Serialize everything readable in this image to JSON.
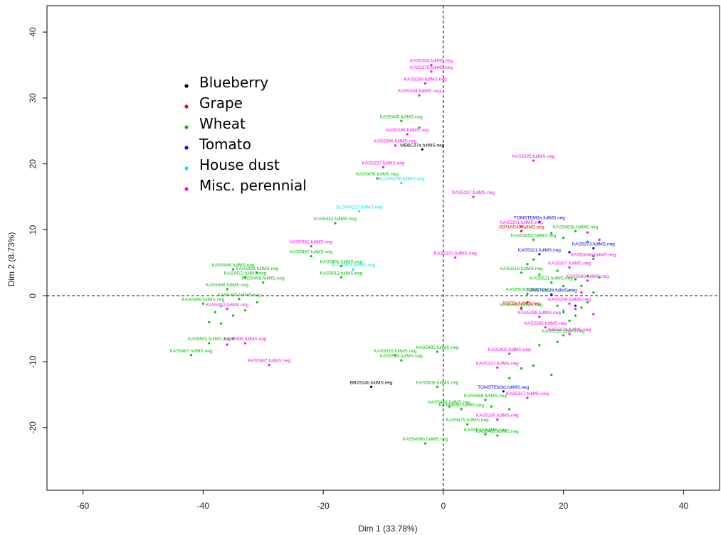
{
  "chart_data": {
    "type": "scatter",
    "title": "",
    "xlabel": "Dim 1 (33.78%)",
    "ylabel": "Dim 2 (8.73%)",
    "xlim": [
      -66,
      46
    ],
    "ylim": [
      -29.5,
      44
    ],
    "xticks": [
      -60,
      -40,
      -20,
      0,
      20,
      40
    ],
    "yticks": [
      -20,
      -10,
      0,
      10,
      20,
      30,
      40
    ],
    "grid": false,
    "reference_lines": {
      "x": 0,
      "y": 0,
      "style": "dashed"
    },
    "legend": {
      "position": "top-left",
      "entries": [
        {
          "name": "Blueberry",
          "color": "#000000"
        },
        {
          "name": "Grape",
          "color": "#ff0000"
        },
        {
          "name": "Wheat",
          "color": "#00c000"
        },
        {
          "name": "Tomato",
          "color": "#0000ff"
        },
        {
          "name": "House dust",
          "color": "#00e5ee"
        },
        {
          "name": "Misc. perennial",
          "color": "#ff00ff"
        }
      ]
    },
    "series": [
      {
        "name": "Blueberry",
        "color": "#000000",
        "points": [
          {
            "x": -3.5,
            "y": 22.2,
            "label": "MBBC37a.fullMS.neg"
          },
          {
            "x": -12,
            "y": -13.8,
            "label": "BBJS14b.fullMS.neg"
          }
        ]
      },
      {
        "name": "Grape",
        "color": "#ff0000",
        "points": [
          {
            "x": 13,
            "y": 9.8,
            "label": "JSP4AR45.fullMS.neg"
          },
          {
            "x": 13,
            "y": -1.8,
            "label": "RSF5b.fullMS.neg"
          },
          {
            "x": 14,
            "y": -1.0,
            "label": ""
          }
        ]
      },
      {
        "name": "Tomato",
        "color": "#0000ff",
        "points": [
          {
            "x": 16,
            "y": 11.2,
            "label": "TOMSTEM3a.fullMS.neg"
          },
          {
            "x": 16,
            "y": 6.3,
            "label": "KAS5321.fullMS.neg"
          },
          {
            "x": 25,
            "y": 7.2,
            "label": "KAS5373.fullMS.neg"
          },
          {
            "x": 10,
            "y": -14.5,
            "label": "TOMSTEM3d.fullMS.neg"
          },
          {
            "x": 18,
            "y": 0.2,
            "label": "TOMSTEM3b.fullMS.neg"
          },
          {
            "x": 22,
            "y": -1.5,
            "label": ""
          },
          {
            "x": 21,
            "y": 6.6,
            "label": ""
          }
        ]
      },
      {
        "name": "House dust",
        "color": "#00e5ee",
        "points": [
          {
            "x": -14,
            "y": 12.8,
            "label": "SLOAN220.fullMS.neg"
          },
          {
            "x": -7,
            "y": 17.1,
            "label": "SLOAN198.fullMS.neg"
          },
          {
            "x": -15,
            "y": 4.0,
            "label": "SLOAN83.fullMS.neg"
          },
          {
            "x": -37,
            "y": -1.6,
            "label": ""
          },
          {
            "x": 20,
            "y": -2.2,
            "label": ""
          }
        ]
      },
      {
        "name": "Misc. perennial",
        "color": "#ff00ff",
        "points": [
          {
            "x": -2,
            "y": 35.0,
            "label": "KAS5304.fullMS.neg"
          },
          {
            "x": -2,
            "y": 34.0,
            "label": "KAS5370.fullMS.neg"
          },
          {
            "x": -3,
            "y": 32.2,
            "label": "KAS5299.fullMS.neg"
          },
          {
            "x": -4,
            "y": 30.4,
            "label": "KAS5394.fullMS.neg"
          },
          {
            "x": -6,
            "y": 24.5,
            "label": "KAS5298.fullMS.neg"
          },
          {
            "x": -8,
            "y": 22.8,
            "label": "KAS5306.fullMS.neg"
          },
          {
            "x": -10,
            "y": 19.5,
            "label": "KAS5287.fullMS.neg"
          },
          {
            "x": 15,
            "y": 20.5,
            "label": "KAS5325.fullMS.neg"
          },
          {
            "x": 5,
            "y": 15.0,
            "label": "KAS5297.fullMS.neg"
          },
          {
            "x": 13,
            "y": 10.5,
            "label": "KAS5301.fullMS.neg"
          },
          {
            "x": -22,
            "y": 7.5,
            "label": "KAS5381.fullMS.neg"
          },
          {
            "x": 2,
            "y": 5.8,
            "label": "KAS5337.fullMS.neg"
          },
          {
            "x": 21,
            "y": 4.3,
            "label": "KAS5307.fullMS.neg"
          },
          {
            "x": 25,
            "y": 5.6,
            "label": "KAS5304b.fullMS.neg"
          },
          {
            "x": 24,
            "y": 2.3,
            "label": "KAS5380.fullMS.neg"
          },
          {
            "x": 21,
            "y": -1.2,
            "label": "KAS5359.fullMS.neg"
          },
          {
            "x": 16,
            "y": -3.2,
            "label": "KAS5398.fullMS.neg"
          },
          {
            "x": 17,
            "y": -4.8,
            "label": "KAS5385.fullMS.neg"
          },
          {
            "x": 21,
            "y": -5.8,
            "label": "KAS5378.fullMS.neg"
          },
          {
            "x": 11,
            "y": -8.8,
            "label": "KAS5400.fullMS.neg"
          },
          {
            "x": 9,
            "y": -10.9,
            "label": "KAS5312.fullMS.neg"
          },
          {
            "x": 14,
            "y": -15.5,
            "label": "KAS5327.fullMS.neg"
          },
          {
            "x": 9,
            "y": -18.8,
            "label": "KAS5290.fullMS.neg"
          },
          {
            "x": -29,
            "y": -10.5,
            "label": "KAS5387.fullMS.neg"
          },
          {
            "x": -33,
            "y": -7.2,
            "label": "KAS5395.fullMS.neg"
          },
          {
            "x": -36,
            "y": -7.4,
            "label": ""
          },
          {
            "x": -36,
            "y": -2.0,
            "label": "KAS5302.fullMS.neg"
          },
          {
            "x": 24,
            "y": 9.6,
            "label": ""
          },
          {
            "x": 26,
            "y": 8.5,
            "label": ""
          },
          {
            "x": 22,
            "y": -2.0,
            "label": ""
          },
          {
            "x": 25,
            "y": -2.8,
            "label": ""
          },
          {
            "x": 23,
            "y": 0.5,
            "label": ""
          }
        ]
      },
      {
        "name": "Wheat",
        "color": "#00c000",
        "points": [
          {
            "x": -7,
            "y": 26.5,
            "label": "KAS5445.fullMS.neg"
          },
          {
            "x": -4,
            "y": 25.5,
            "label": ""
          },
          {
            "x": -11,
            "y": 17.8,
            "label": "KAS5456.fullMS.neg"
          },
          {
            "x": -18,
            "y": 11.0,
            "label": "KAS5443.fullMS.neg"
          },
          {
            "x": -22,
            "y": 6.0,
            "label": "KAS5487.fullMS.neg"
          },
          {
            "x": -17,
            "y": 4.5,
            "label": "KAS5466.fullMS.neg"
          },
          {
            "x": -17,
            "y": 2.8,
            "label": "KAS5512.fullMS.neg"
          },
          {
            "x": -35,
            "y": 4.0,
            "label": "KAS5446.fullMS.neg"
          },
          {
            "x": -31,
            "y": 3.5,
            "label": "KAS5483.fullMS.neg"
          },
          {
            "x": -33,
            "y": 2.8,
            "label": "KAS5472.fullMS.neg"
          },
          {
            "x": -30,
            "y": 2.0,
            "label": "KAS5498.fullMS.neg"
          },
          {
            "x": -36,
            "y": 1.0,
            "label": "KAS5488.fullMS.neg"
          },
          {
            "x": -34,
            "y": -0.5,
            "label": "KAS5480.fullMS.neg"
          },
          {
            "x": -40,
            "y": -1.2,
            "label": "KAS5496.fullMS.neg"
          },
          {
            "x": -38,
            "y": -2.5,
            "label": ""
          },
          {
            "x": -35,
            "y": -3.0,
            "label": ""
          },
          {
            "x": -33,
            "y": -2.2,
            "label": ""
          },
          {
            "x": -31,
            "y": -1.0,
            "label": ""
          },
          {
            "x": -39,
            "y": -4.0,
            "label": ""
          },
          {
            "x": -37,
            "y": -4.2,
            "label": ""
          },
          {
            "x": -35,
            "y": -6.5,
            "label": ""
          },
          {
            "x": -39,
            "y": -7.2,
            "label": "KAS5502.fullMS.neg"
          },
          {
            "x": -42,
            "y": -9.0,
            "label": "KAS5467.fullMS.neg"
          },
          {
            "x": -8,
            "y": -9.0,
            "label": "KAS5515.fullMS.neg"
          },
          {
            "x": -7,
            "y": -9.8,
            "label": "KAS5514.fullMS.neg"
          },
          {
            "x": -1,
            "y": -8.5,
            "label": "KAS5495.fullMS.neg"
          },
          {
            "x": -1,
            "y": -13.8,
            "label": "KAS5508.fullMS.neg"
          },
          {
            "x": -3,
            "y": -22.4,
            "label": "KAS5496b.fullMS.neg"
          },
          {
            "x": 1,
            "y": -16.8,
            "label": "KAS5449.fullMS.neg"
          },
          {
            "x": 3,
            "y": -17.2,
            "label": "KAS5456b.fullMS.neg"
          },
          {
            "x": 4,
            "y": -19.5,
            "label": "KAS5479.fullMS.neg"
          },
          {
            "x": 7,
            "y": -21.0,
            "label": "KAS5531.fullMS.neg"
          },
          {
            "x": 9,
            "y": -21.2,
            "label": "KAS5485.fullMS.neg"
          },
          {
            "x": 7,
            "y": -15.8,
            "label": "KAS5486.fullMS.neg"
          },
          {
            "x": 8,
            "y": -16.8,
            "label": ""
          },
          {
            "x": 11,
            "y": -17.2,
            "label": ""
          },
          {
            "x": 11,
            "y": -12.5,
            "label": ""
          },
          {
            "x": 13,
            "y": -11.0,
            "label": ""
          },
          {
            "x": 15,
            "y": -10.6,
            "label": ""
          },
          {
            "x": 18,
            "y": -12.0,
            "label": ""
          },
          {
            "x": 16,
            "y": -7.5,
            "label": ""
          },
          {
            "x": 19,
            "y": -7.0,
            "label": ""
          },
          {
            "x": 20,
            "y": -6.0,
            "label": "KAS5526.fullMS.neg"
          },
          {
            "x": 13,
            "y": 3.5,
            "label": "KAS5516.fullMS.neg"
          },
          {
            "x": 14,
            "y": 0.3,
            "label": "KAS5509.fullMS.neg"
          },
          {
            "x": 13,
            "y": -2.0,
            "label": "KAS5511.fullMS.neg"
          },
          {
            "x": 15,
            "y": 5.5,
            "label": ""
          },
          {
            "x": 14,
            "y": 4.8,
            "label": ""
          },
          {
            "x": 16,
            "y": 3.2,
            "label": ""
          },
          {
            "x": 18,
            "y": 2.0,
            "label": "KAS5521.fullMS.neg"
          },
          {
            "x": 19,
            "y": 3.8,
            "label": ""
          },
          {
            "x": 20,
            "y": 1.5,
            "label": ""
          },
          {
            "x": 21,
            "y": 0.8,
            "label": ""
          },
          {
            "x": 22,
            "y": 2.5,
            "label": ""
          },
          {
            "x": 23,
            "y": 1.5,
            "label": ""
          },
          {
            "x": 24,
            "y": 3.0,
            "label": ""
          },
          {
            "x": 25,
            "y": 0.5,
            "label": ""
          },
          {
            "x": 26,
            "y": 2.8,
            "label": ""
          },
          {
            "x": 19,
            "y": -1.5,
            "label": ""
          },
          {
            "x": 20,
            "y": -2.5,
            "label": ""
          },
          {
            "x": 22,
            "y": -3.0,
            "label": ""
          },
          {
            "x": 23,
            "y": -1.8,
            "label": ""
          },
          {
            "x": 24,
            "y": -1.0,
            "label": ""
          },
          {
            "x": 21,
            "y": -3.8,
            "label": ""
          },
          {
            "x": 18,
            "y": 9.5,
            "label": ""
          },
          {
            "x": 20,
            "y": 8.8,
            "label": ""
          },
          {
            "x": 22,
            "y": 9.8,
            "label": "KAS5483b.fullMS.neg"
          },
          {
            "x": 24,
            "y": 8.2,
            "label": ""
          },
          {
            "x": 25,
            "y": 6.0,
            "label": ""
          },
          {
            "x": 15,
            "y": 8.5,
            "label": "KAS5485b.fullMS.neg"
          }
        ]
      }
    ]
  }
}
